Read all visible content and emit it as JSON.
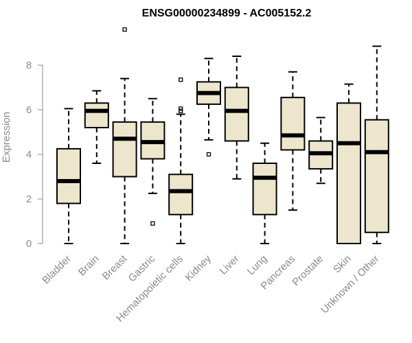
{
  "chart_data": {
    "type": "boxplot",
    "title": "ENSG00000234899 - AC005152.2",
    "xlabel": "",
    "ylabel": "Expression",
    "ylim": [
      0,
      9.5
    ],
    "yticks": [
      0,
      2,
      4,
      6,
      8
    ],
    "box_fill": "#ede6cc",
    "categories": [
      "Bladder",
      "Brain",
      "Breast",
      "Gastric",
      "Hematopoietic cells",
      "Kidney",
      "Liver",
      "Lung",
      "Pancreas",
      "Prostate",
      "Skin",
      "Unknown / Other"
    ],
    "boxes": [
      {
        "min": 0.0,
        "q1": 1.8,
        "median": 2.8,
        "q3": 4.25,
        "max": 6.05,
        "outliers": []
      },
      {
        "min": 3.6,
        "q1": 5.2,
        "median": 5.95,
        "q3": 6.3,
        "max": 6.85,
        "outliers": []
      },
      {
        "min": 0.0,
        "q1": 3.0,
        "median": 4.7,
        "q3": 5.45,
        "max": 7.4,
        "outliers": [
          9.6
        ]
      },
      {
        "min": 2.25,
        "q1": 3.8,
        "median": 4.55,
        "q3": 5.45,
        "max": 6.5,
        "outliers": [
          0.9
        ]
      },
      {
        "min": 0.0,
        "q1": 1.3,
        "median": 2.35,
        "q3": 3.1,
        "max": 5.8,
        "outliers": [
          5.95,
          6.05,
          7.35
        ]
      },
      {
        "min": 4.65,
        "q1": 6.25,
        "median": 6.75,
        "q3": 7.25,
        "max": 8.3,
        "outliers": [
          4.0
        ]
      },
      {
        "min": 2.9,
        "q1": 4.6,
        "median": 5.95,
        "q3": 7.0,
        "max": 8.4,
        "outliers": []
      },
      {
        "min": 0.0,
        "q1": 1.3,
        "median": 2.95,
        "q3": 3.6,
        "max": 4.5,
        "outliers": []
      },
      {
        "min": 1.5,
        "q1": 4.2,
        "median": 4.85,
        "q3": 6.55,
        "max": 7.7,
        "outliers": []
      },
      {
        "min": 2.7,
        "q1": 3.35,
        "median": 4.05,
        "q3": 4.6,
        "max": 5.65,
        "outliers": []
      },
      {
        "min": 0.0,
        "q1": 0.0,
        "median": 4.5,
        "q3": 6.3,
        "max": 7.15,
        "outliers": []
      },
      {
        "min": 0.0,
        "q1": 0.5,
        "median": 4.1,
        "q3": 5.55,
        "max": 8.85,
        "outliers": []
      }
    ]
  }
}
